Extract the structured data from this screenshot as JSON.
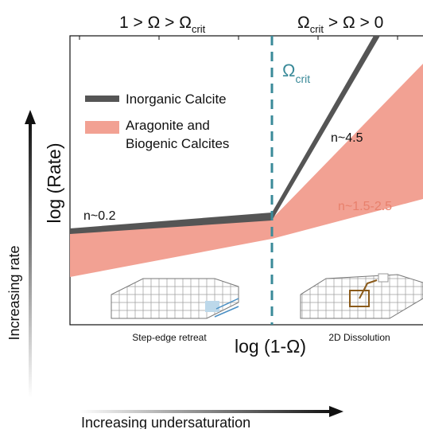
{
  "header": {
    "left": {
      "main": "1 > Ω > Ω",
      "sub": "crit"
    },
    "right": {
      "main": "Ω",
      "sub": "crit",
      "rest": " > Ω > 0"
    }
  },
  "threshold": {
    "main": "Ω",
    "sub": "crit"
  },
  "legend": {
    "items": [
      {
        "label": "Inorganic Calcite"
      },
      {
        "label_lines": [
          "Aragonite and",
          "Biogenic Calcites"
        ]
      }
    ]
  },
  "annotations": {
    "high_inorganic": "n~4.5",
    "low": "n~0.2",
    "high_biogenic": "n~1.5-2.5"
  },
  "axes": {
    "y_label": "log (Rate)",
    "x_label": "log (1-Ω)",
    "y_arrow": "Increasing rate",
    "x_arrow": "Increasing undersaturation"
  },
  "insets": {
    "left": "Step-edge retreat",
    "right": "2D Dissolution"
  }
}
